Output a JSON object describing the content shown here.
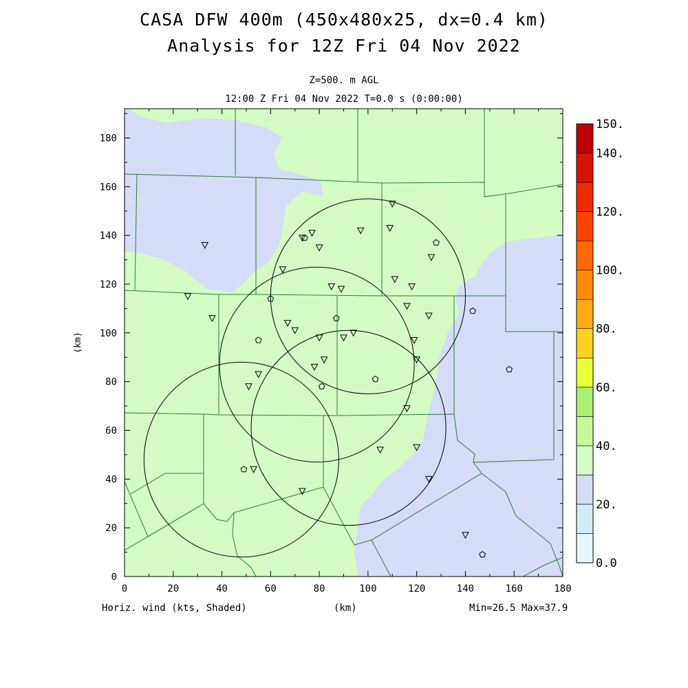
{
  "title": "CASA DFW 400m (450x480x25, dx=0.4 km)",
  "subtitle": "Analysis for 12Z Fri 04 Nov 2022",
  "level": "Z=500. m AGL",
  "time_label": "12:00 Z Fri 04 Nov 2022    T=0.0 s (0:00:00)",
  "footer": {
    "field": "Horiz. wind (kts, Shaded)",
    "xunit": "(km)",
    "minmax": "Min=26.5 Max=37.9"
  },
  "chart_data": {
    "type": "heatmap",
    "xlabel": "(km)",
    "ylabel": "(km)",
    "xlim": [
      0,
      180
    ],
    "ylim": [
      0,
      192
    ],
    "xticks": [
      "0",
      "20",
      "40",
      "60",
      "80",
      "100",
      "120",
      "140",
      "160",
      "180"
    ],
    "yticks": [
      "0",
      "20",
      "40",
      "60",
      "80",
      "100",
      "120",
      "140",
      "160",
      "180"
    ],
    "colorbar": {
      "labels": [
        "0.0",
        "20.",
        "40.",
        "60.",
        "80.",
        "100.",
        "120.",
        "140.",
        "150."
      ],
      "levels": [
        0,
        10,
        20,
        30,
        40,
        50,
        60,
        70,
        80,
        90,
        100,
        110,
        120,
        130,
        140,
        150
      ],
      "colors": [
        "#e6f7fb",
        "#d2ecf6",
        "#d4dcf7",
        "#d4fcc4",
        "#c6f89a",
        "#aef077",
        "#e8ff3a",
        "#ffd21e",
        "#ffaa14",
        "#ff8a0a",
        "#ff6a00",
        "#ff4400",
        "#f02a00",
        "#d81400",
        "#bd0000"
      ]
    },
    "field_colors": {
      "low_wind": "#d4dcf7",
      "mid_wind": "#d4fcc4"
    },
    "radar_rings": [
      {
        "center": [
          48,
          48
        ],
        "radius": 40
      },
      {
        "center": [
          79,
          87
        ],
        "radius": 40
      },
      {
        "center": [
          100,
          115
        ],
        "radius": 40
      },
      {
        "center": [
          92,
          61
        ],
        "radius": 40
      }
    ],
    "stations_triangle": [
      [
        33,
        136
      ],
      [
        26,
        115
      ],
      [
        36,
        106
      ],
      [
        65,
        126
      ],
      [
        67,
        104
      ],
      [
        70,
        101
      ],
      [
        73,
        139
      ],
      [
        77,
        141
      ],
      [
        80,
        135
      ],
      [
        85,
        119
      ],
      [
        89,
        118
      ],
      [
        97,
        142
      ],
      [
        109,
        143
      ],
      [
        110,
        153
      ],
      [
        111,
        122
      ],
      [
        116,
        111
      ],
      [
        118,
        119
      ],
      [
        125,
        107
      ],
      [
        126,
        131
      ],
      [
        119,
        97
      ],
      [
        120,
        89
      ],
      [
        94,
        100
      ],
      [
        90,
        98
      ],
      [
        80,
        98
      ],
      [
        82,
        89
      ],
      [
        78,
        86
      ],
      [
        55,
        83
      ],
      [
        51,
        78
      ],
      [
        53,
        44
      ],
      [
        73,
        35
      ],
      [
        105,
        52
      ],
      [
        120,
        53
      ],
      [
        125,
        40
      ],
      [
        140,
        17
      ],
      [
        116,
        69
      ]
    ],
    "stations_circle": [
      [
        55,
        97
      ],
      [
        60,
        114
      ],
      [
        87,
        106
      ],
      [
        74,
        139
      ],
      [
        128,
        137
      ],
      [
        143,
        109
      ],
      [
        158,
        85
      ],
      [
        103,
        81
      ],
      [
        81,
        78
      ],
      [
        49,
        44
      ],
      [
        147,
        9
      ]
    ]
  }
}
